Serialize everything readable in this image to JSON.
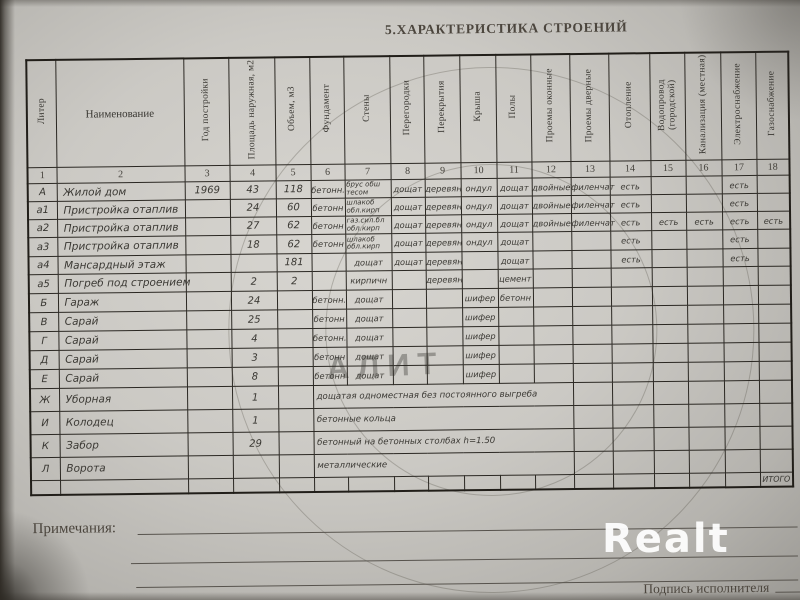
{
  "title": "5.ХАРАКТЕРИСТИКА СТРОЕНИЙ",
  "table": {
    "columns": [
      {
        "num": "1",
        "label": "Литер"
      },
      {
        "num": "2",
        "label": "Наименование"
      },
      {
        "num": "3",
        "label": "Год постройки"
      },
      {
        "num": "4",
        "label": "Площадь наружная, м2"
      },
      {
        "num": "5",
        "label": "Объем, м3"
      },
      {
        "num": "6",
        "label": "Фундамент"
      },
      {
        "num": "7",
        "label": "Стены"
      },
      {
        "num": "8",
        "label": "Перегородки"
      },
      {
        "num": "9",
        "label": "Перекрытия"
      },
      {
        "num": "10",
        "label": "Крыша"
      },
      {
        "num": "11",
        "label": "Полы"
      },
      {
        "num": "12",
        "label": "Проемы оконные"
      },
      {
        "num": "13",
        "label": "Проемы дверные"
      },
      {
        "num": "14",
        "label": "Отопление"
      },
      {
        "num": "15",
        "label": "Водопровод (городской)"
      },
      {
        "num": "16",
        "label": "Канализация (местная)"
      },
      {
        "num": "17",
        "label": "Электроснабжение"
      },
      {
        "num": "18",
        "label": "Газоснабжение"
      }
    ],
    "rows": [
      {
        "cells": [
          "А",
          "Жилой дом",
          "1969",
          "43",
          "118",
          "бетонн.",
          "брус обш|тесом",
          "дощат",
          "деревян",
          "ондул",
          "дощат",
          "двойные",
          "филенчат",
          "есть",
          "",
          "",
          "есть",
          ""
        ]
      },
      {
        "cells": [
          "а1",
          "Пристройка отаплив",
          "",
          "24",
          "60",
          "бетонн",
          "шлакоб|обл.кирп",
          "дощат",
          "деревян",
          "ондул",
          "дощат",
          "двойные",
          "филенчат",
          "есть",
          "",
          "",
          "есть",
          ""
        ]
      },
      {
        "cells": [
          "а2",
          "Пристройка отаплив",
          "",
          "27",
          "62",
          "бетонн",
          "газ.сил.бл|обл.кирп",
          "дощат",
          "деревян",
          "ондул",
          "дощат",
          "двойные",
          "филенчат",
          "есть",
          "есть",
          "есть",
          "есть",
          "есть"
        ]
      },
      {
        "cells": [
          "а3",
          "Пристройка отаплив",
          "",
          "18",
          "62",
          "бетонн",
          "шлакоб|обл.кирп",
          "дощат",
          "деревян",
          "ондул",
          "дощат",
          "",
          "",
          "есть",
          "",
          "",
          "есть",
          ""
        ]
      },
      {
        "cells": [
          "а4",
          "Мансардный этаж",
          "",
          "",
          "181",
          "",
          "дощат",
          "дощат",
          "деревян",
          "",
          "дощат",
          "",
          "",
          "есть",
          "",
          "",
          "есть",
          ""
        ]
      },
      {
        "cells": [
          "а5",
          "Погреб под строением",
          "",
          "2",
          "2",
          "",
          "кирпичн",
          "",
          "деревян",
          "",
          "цемент",
          "",
          "",
          "",
          "",
          "",
          "",
          ""
        ]
      },
      {
        "cells": [
          "Б",
          "Гараж",
          "",
          "24",
          "",
          "бетонн.",
          "дощат",
          "",
          "",
          "шифер",
          "бетонн",
          "",
          "",
          "",
          "",
          "",
          "",
          ""
        ]
      },
      {
        "cells": [
          "В",
          "Сарай",
          "",
          "25",
          "",
          "бетонн",
          "дощат",
          "",
          "",
          "шифер",
          "",
          "",
          "",
          "",
          "",
          "",
          "",
          ""
        ]
      },
      {
        "cells": [
          "Г",
          "Сарай",
          "",
          "4",
          "",
          "бетонн.",
          "дощат",
          "",
          "",
          "шифер",
          "",
          "",
          "",
          "",
          "",
          "",
          "",
          ""
        ]
      },
      {
        "cells": [
          "Д",
          "Сарай",
          "",
          "3",
          "",
          "бетонн",
          "дощат",
          "",
          "",
          "шифер",
          "",
          "",
          "",
          "",
          "",
          "",
          "",
          ""
        ]
      },
      {
        "cells": [
          "Е",
          "Сарай",
          "",
          "8",
          "",
          "бетонн",
          "дощат",
          "",
          "",
          "шифер",
          "",
          "",
          "",
          "",
          "",
          "",
          "",
          ""
        ]
      },
      {
        "cells": [
          "Ж",
          "Уборная",
          "",
          "1",
          ""
        ],
        "span": "дощатая одноместная без постоянного выгреба"
      },
      {
        "cells": [
          "И",
          "Колодец",
          "",
          "1",
          ""
        ],
        "span": "бетонные кольца"
      },
      {
        "cells": [
          "К",
          "Забор",
          "",
          "29",
          ""
        ],
        "span": "бетонный на бетонных столбах h=1.50"
      },
      {
        "cells": [
          "Л",
          "Ворота",
          "",
          "",
          ""
        ],
        "span": "металлические"
      },
      {
        "cells": [
          "",
          "",
          "",
          "",
          "",
          "",
          "",
          "",
          "",
          "",
          "",
          "",
          "",
          "",
          "",
          "",
          "",
          "ИТОГО"
        ]
      }
    ]
  },
  "watermarks": {
    "stamp_text": "АЛИТ",
    "logo_text": "Realt"
  },
  "footer": {
    "notes_label": "Примечания:",
    "signature_label": "Подпись исполнителя"
  },
  "colors": {
    "paper": "#cbc9c4",
    "ink_printed": "#3a3833",
    "ink_hand": "#393941",
    "table_line": "#2b2823",
    "logo": "#ffffff"
  }
}
